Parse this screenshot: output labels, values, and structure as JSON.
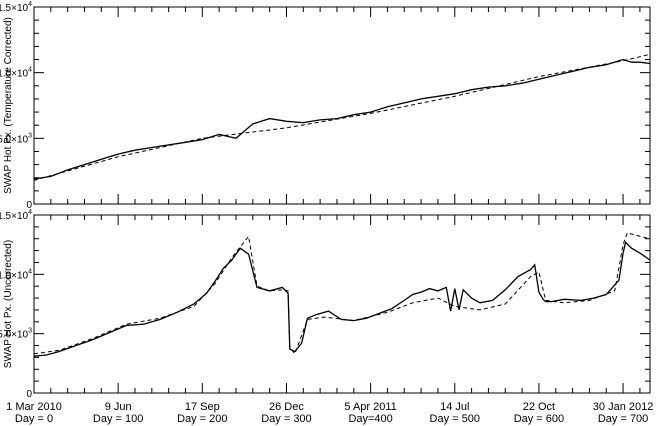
{
  "chart_data": [
    {
      "type": "line",
      "ylabel": "SWAP Hot Px. (Temperature Corrected)",
      "xlim": [
        0,
        732
      ],
      "ylim": [
        0,
        15000
      ],
      "y_ticks": [
        {
          "value": 0,
          "mantissa": "0",
          "exp": ""
        },
        {
          "value": 5000,
          "mantissa": "5.0×10",
          "exp": "3"
        },
        {
          "value": 10000,
          "mantissa": "1.0×10",
          "exp": "4"
        },
        {
          "value": 15000,
          "mantissa": "1.5×10",
          "exp": "4"
        }
      ],
      "series": [
        {
          "style": "solid",
          "x": [
            0,
            20,
            40,
            60,
            80,
            100,
            120,
            140,
            160,
            180,
            200,
            220,
            240,
            260,
            280,
            300,
            320,
            340,
            360,
            380,
            400,
            420,
            440,
            460,
            480,
            500,
            520,
            540,
            560,
            580,
            600,
            620,
            640,
            660,
            680,
            700,
            710,
            720,
            732
          ],
          "y": [
            1900,
            2100,
            2600,
            3000,
            3400,
            3800,
            4100,
            4300,
            4500,
            4700,
            4900,
            5300,
            5000,
            6100,
            6500,
            6300,
            6200,
            6400,
            6500,
            6800,
            7000,
            7400,
            7700,
            8000,
            8200,
            8400,
            8700,
            8900,
            9000,
            9200,
            9500,
            9800,
            10100,
            10400,
            10600,
            11000,
            10800,
            10800,
            10700
          ]
        },
        {
          "style": "dashed",
          "x": [
            0,
            100,
            200,
            300,
            400,
            500,
            600,
            700,
            732
          ],
          "y": [
            1800,
            3600,
            5000,
            5800,
            6900,
            8200,
            9700,
            10900,
            11400
          ]
        }
      ]
    },
    {
      "type": "line",
      "ylabel": "SWAP Hot Px. (Uncorrected)",
      "xlim": [
        0,
        732
      ],
      "ylim": [
        0,
        15000
      ],
      "y_ticks": [
        {
          "value": 0,
          "mantissa": "0",
          "exp": ""
        },
        {
          "value": 5000,
          "mantissa": "5.0×10",
          "exp": "3"
        },
        {
          "value": 10000,
          "mantissa": "1.0×10",
          "exp": "4"
        },
        {
          "value": 15000,
          "mantissa": "1.5×10",
          "exp": "4"
        }
      ],
      "x_ticks": [
        {
          "value": 0,
          "date": "1 Mar 2010",
          "day": "Day = 0"
        },
        {
          "value": 100,
          "date": "9 Jun",
          "day": "Day = 100"
        },
        {
          "value": 200,
          "date": "17 Sep",
          "day": "Day = 200"
        },
        {
          "value": 300,
          "date": "26 Dec",
          "day": "Day = 300"
        },
        {
          "value": 400,
          "date": "5 Apr 2011",
          "day": "Day=400"
        },
        {
          "value": 500,
          "date": "14 Jul",
          "day": "Day = 500"
        },
        {
          "value": 600,
          "date": "22 Oct",
          "day": "Day = 600"
        },
        {
          "value": 700,
          "date": "30 Jan 2012",
          "day": "Day = 700"
        }
      ],
      "series": [
        {
          "style": "solid",
          "x": [
            0,
            15,
            30,
            50,
            70,
            90,
            110,
            130,
            150,
            170,
            190,
            205,
            215,
            225,
            235,
            245,
            255,
            265,
            280,
            295,
            302,
            304,
            310,
            318,
            325,
            335,
            350,
            365,
            380,
            395,
            410,
            425,
            440,
            450,
            460,
            470,
            480,
            490,
            495,
            500,
            505,
            510,
            520,
            530,
            545,
            560,
            575,
            590,
            595,
            600,
            605,
            608,
            615,
            630,
            650,
            665,
            680,
            695,
            700,
            703,
            710,
            720,
            732
          ],
          "y": [
            3100,
            3200,
            3500,
            4000,
            4500,
            5100,
            5700,
            5800,
            6200,
            6800,
            7500,
            8400,
            9400,
            10500,
            11200,
            12200,
            11700,
            8900,
            8600,
            8900,
            8400,
            3700,
            3500,
            4200,
            6300,
            6600,
            6900,
            6200,
            6100,
            6300,
            6700,
            7100,
            7800,
            8300,
            8500,
            8800,
            8600,
            8900,
            6900,
            8800,
            7000,
            8700,
            8000,
            7600,
            7800,
            8700,
            9800,
            10400,
            10800,
            8500,
            7900,
            7700,
            7700,
            7900,
            7800,
            8000,
            8300,
            9500,
            11800,
            12700,
            12200,
            11800,
            11200
          ]
        },
        {
          "style": "dashed",
          "x": [
            0,
            30,
            70,
            110,
            150,
            190,
            215,
            235,
            255,
            265,
            280,
            295,
            302,
            304,
            310,
            325,
            345,
            380,
            420,
            450,
            480,
            500,
            530,
            560,
            590,
            600,
            608,
            630,
            660,
            690,
            700,
            705,
            715,
            732
          ],
          "y": [
            3300,
            3600,
            4600,
            5800,
            6300,
            7300,
            9200,
            11400,
            13200,
            9000,
            8600,
            8700,
            8600,
            3800,
            3300,
            6200,
            6400,
            6100,
            6800,
            7600,
            8000,
            7300,
            7000,
            7500,
            9800,
            10200,
            7800,
            7600,
            7800,
            8600,
            12500,
            13500,
            13300,
            13000
          ]
        }
      ]
    }
  ]
}
